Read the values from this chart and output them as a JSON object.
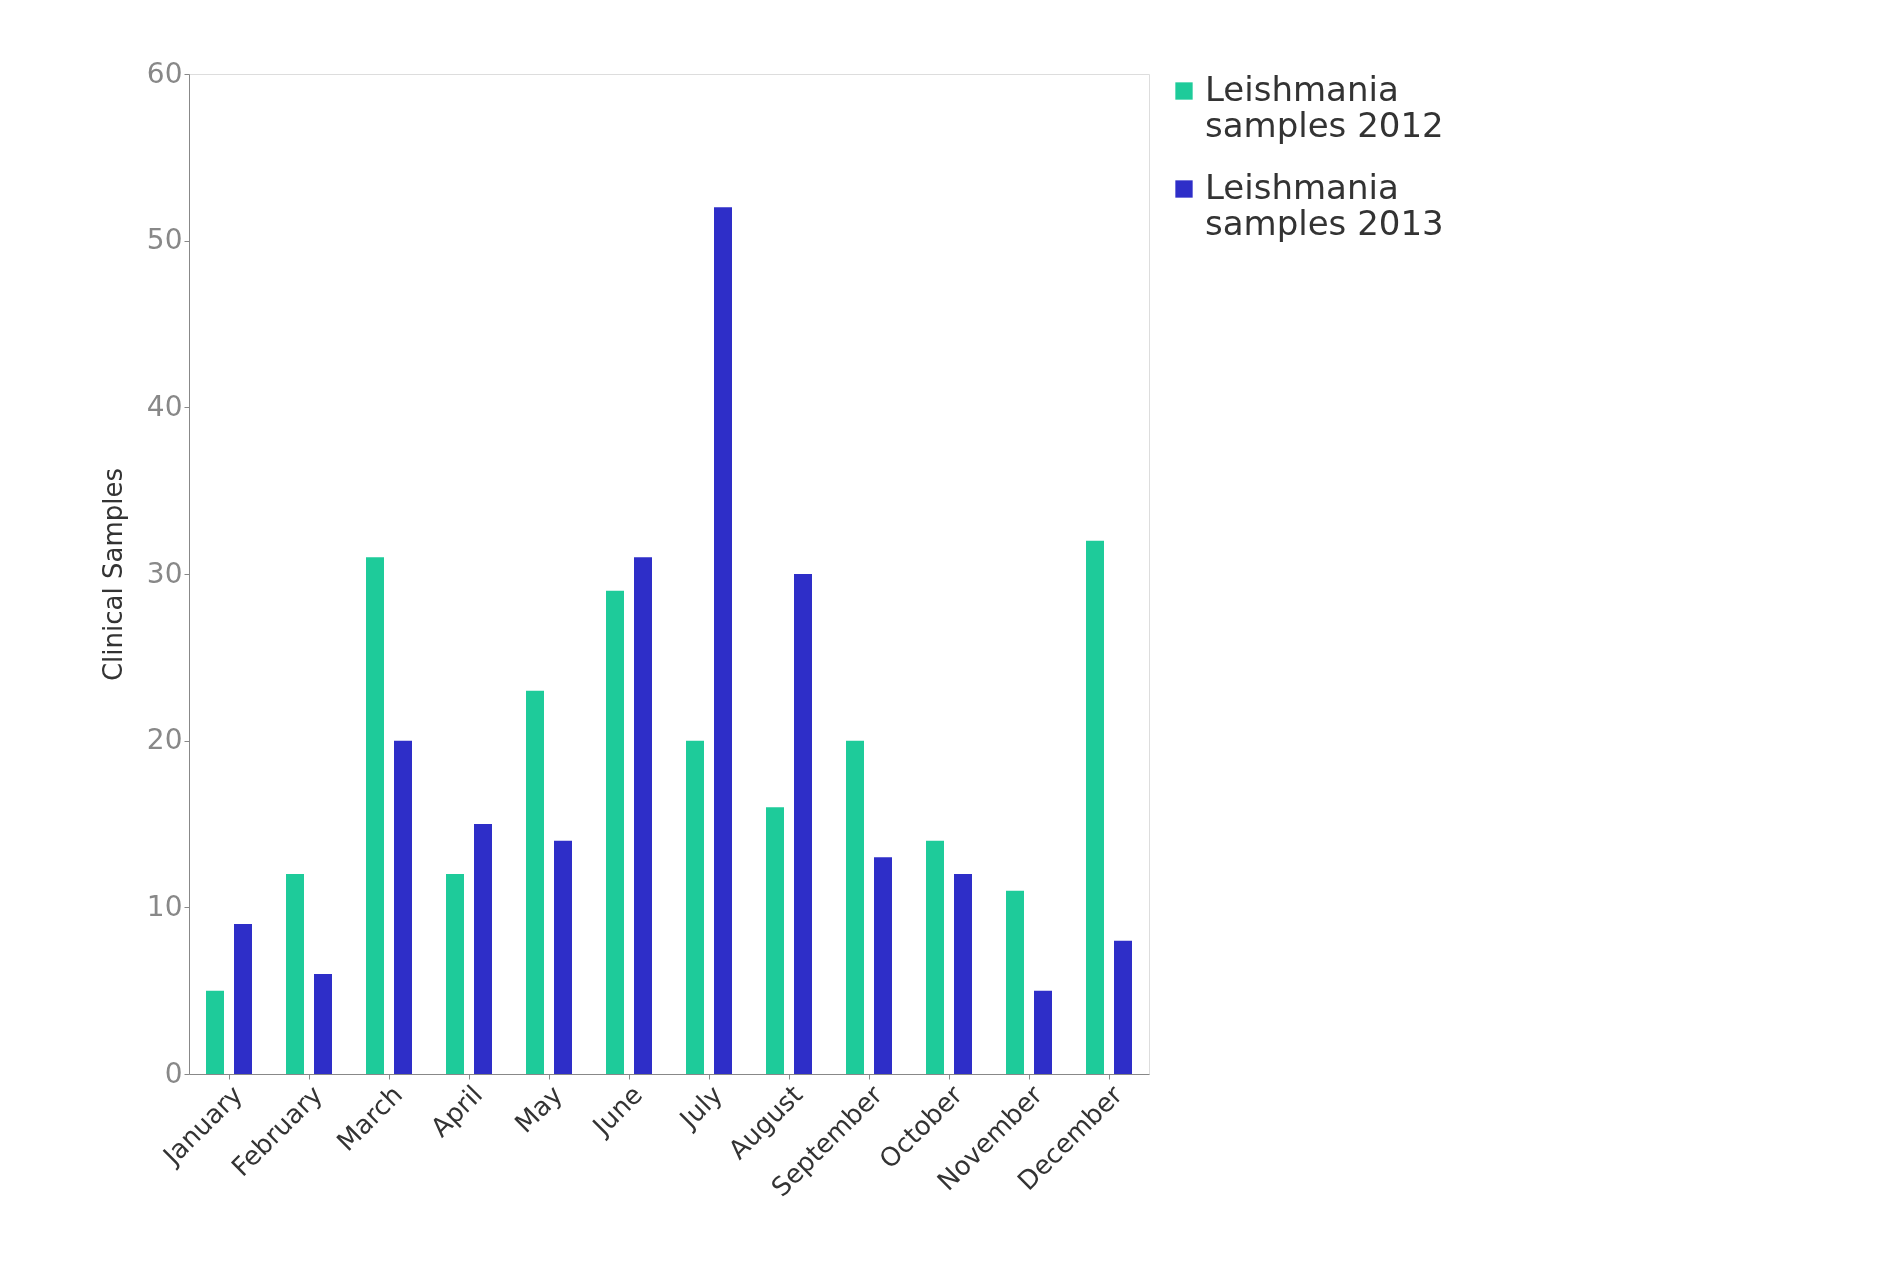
{
  "chart_data": {
    "type": "bar",
    "ylabel": "Clinical Samples",
    "categories": [
      "January",
      "February",
      "March",
      "April",
      "May",
      "June",
      "July",
      "August",
      "September",
      "October",
      "November",
      "December"
    ],
    "series": [
      {
        "name": "Leishmania samples 2012",
        "color": "#1ecb9a",
        "values": [
          5,
          12,
          31,
          12,
          23,
          29,
          20,
          16,
          20,
          14,
          11,
          32
        ]
      },
      {
        "name": "Leishmania samples 2013",
        "color": "#2e2ec8",
        "values": [
          9,
          6,
          20,
          15,
          14,
          31,
          52,
          30,
          13,
          12,
          5,
          8
        ]
      }
    ],
    "ylim": [
      0,
      60
    ],
    "yticks": [
      0,
      10,
      20,
      30,
      40,
      50,
      60
    ],
    "grid": false,
    "legend": "right"
  }
}
